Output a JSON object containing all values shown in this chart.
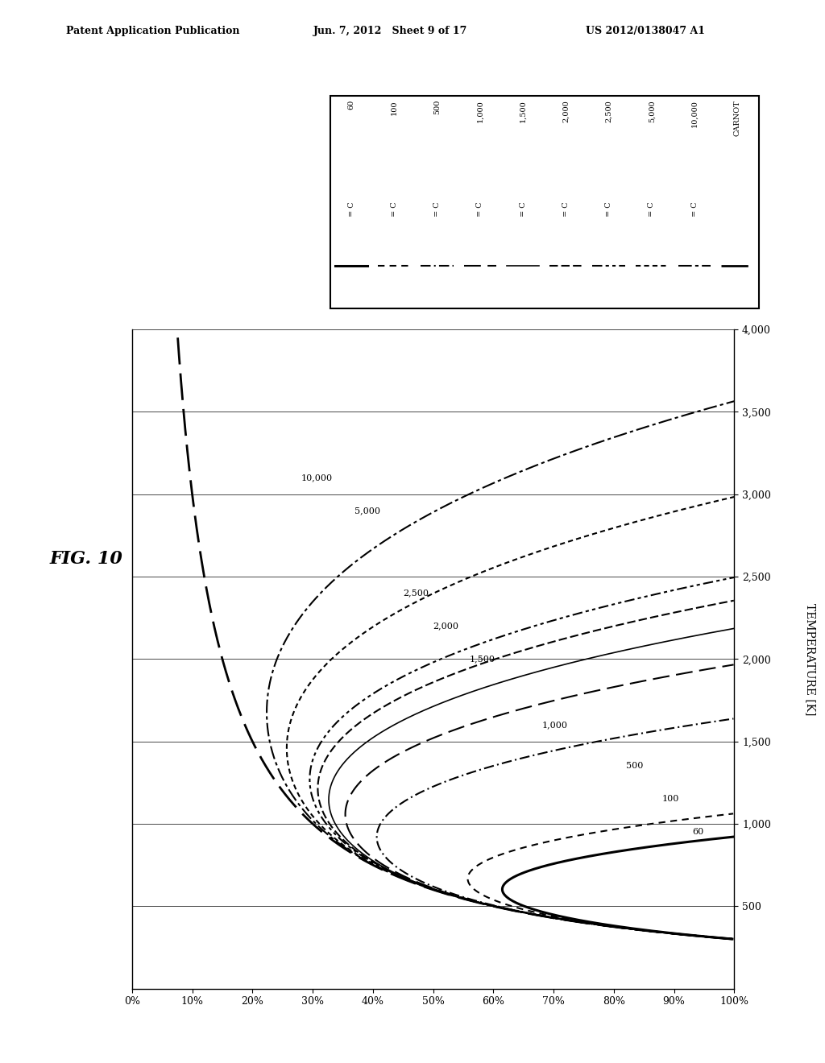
{
  "header_left": "Patent Application Publication",
  "header_mid": "Jun. 7, 2012   Sheet 9 of 17",
  "header_right": "US 2012/0138047 A1",
  "fig_label": "FIG. 10",
  "T_amb": 300,
  "I_0": 1000,
  "sigma": 5.67e-08,
  "concentrations": [
    60,
    100,
    500,
    1000,
    1500,
    2000,
    2500,
    5000,
    10000
  ],
  "legend_labels": [
    "60",
    "100",
    "500",
    "1,000",
    "1,500",
    "2,000",
    "2,500",
    "5,000",
    "10,000",
    "CARNOT"
  ],
  "legend_C_labels": [
    "C = 60",
    "C = 100",
    "C = 500",
    "C = 1,000",
    "C = 1,500",
    "C = 2,000",
    "C = 2,500",
    "C = 5,000",
    "C = 10,000"
  ],
  "curve_labels": {
    "60": "60",
    "100": "100",
    "500": "500",
    "1000": "1,000",
    "1500": "1,500",
    "2000": "2,000",
    "2500": "2,500",
    "5000": "5,000",
    "10000": "10,000"
  },
  "T_min": 0,
  "T_max": 4000,
  "eta_min": 0.0,
  "eta_max": 1.0,
  "x_ticks_T": [
    500,
    1000,
    1500,
    2000,
    2500,
    3000,
    3500,
    4000
  ],
  "x_tick_labels_T": [
    "500",
    "1,000",
    "1,500",
    "2,000",
    "2,500",
    "3,000",
    "3,500",
    "4,000"
  ],
  "y_ticks_eta": [
    0.0,
    0.1,
    0.2,
    0.3,
    0.4,
    0.5,
    0.6,
    0.7,
    0.8,
    0.9,
    1.0
  ],
  "y_tick_labels_eta": [
    "0%",
    "10%",
    "20%",
    "30%",
    "40%",
    "50%",
    "60%",
    "70%",
    "80%",
    "90%",
    "100%"
  ]
}
